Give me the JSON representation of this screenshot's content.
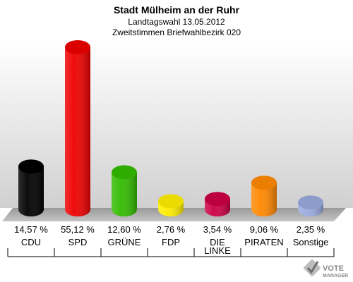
{
  "chart_data": {
    "type": "bar",
    "title": "Stadt Mülheim an der Ruhr",
    "subtitle_1": "Landtagswahl 13.05.2012",
    "subtitle_2": "Zweitstimmen Briefwahlbezirk 020",
    "categories": [
      "CDU",
      "SPD",
      "GRÜNE",
      "FDP",
      "DIE LINKE",
      "PIRATEN",
      "Sonstige"
    ],
    "category_lines": [
      [
        "CDU"
      ],
      [
        "SPD"
      ],
      [
        "GRÜNE"
      ],
      [
        "FDP"
      ],
      [
        "DIE",
        "LINKE"
      ],
      [
        "PIRATEN"
      ],
      [
        "Sonstige"
      ]
    ],
    "values": [
      14.57,
      55.12,
      12.6,
      2.76,
      3.54,
      9.06,
      2.35
    ],
    "value_labels": [
      "14,57 %",
      "55,12 %",
      "12,60 %",
      "2,76 %",
      "3,54 %",
      "9,06 %",
      "2,35 %"
    ],
    "colors": [
      "#000000",
      "#ee0000",
      "#33bb00",
      "#ffee00",
      "#cc0044",
      "#ff8800",
      "#99aadd"
    ],
    "ylim": [
      0,
      55.12
    ],
    "grid": false
  },
  "logo": {
    "text_1": "VOTE",
    "text_2": "MANAGER"
  }
}
